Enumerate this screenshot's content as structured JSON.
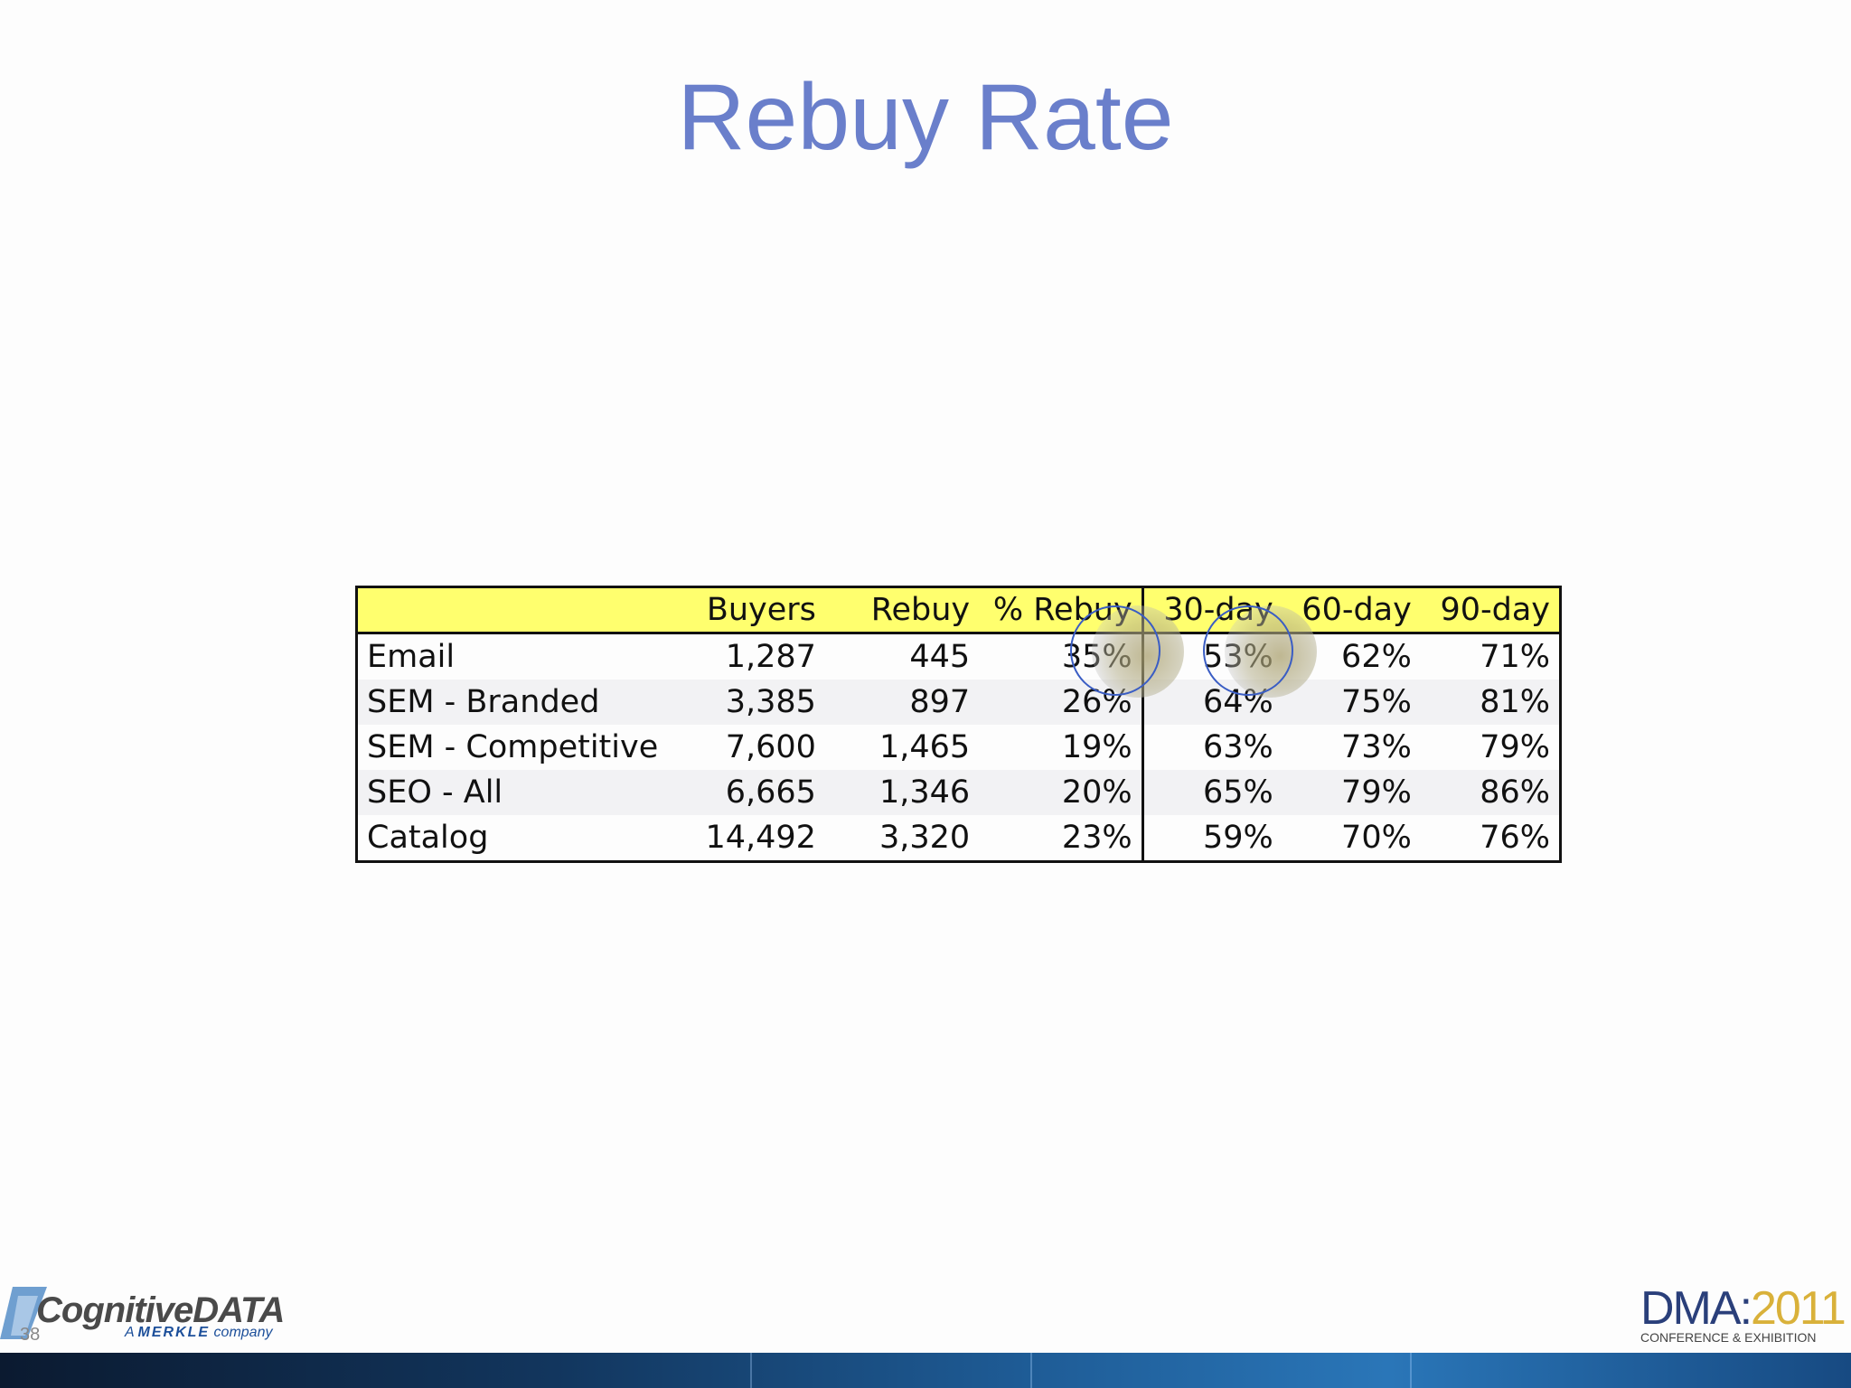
{
  "slide": {
    "title": "Rebuy Rate",
    "page_number": "38"
  },
  "table": {
    "headers": [
      "",
      "Buyers",
      "Rebuy",
      "% Rebuy",
      "30-day",
      "60-day",
      "90-day"
    ],
    "rows": [
      {
        "label": "Email",
        "buyers": "1,287",
        "rebuy": "445",
        "pct_rebuy": "35%",
        "d30": "53%",
        "d60": "62%",
        "d90": "71%"
      },
      {
        "label": "SEM - Branded",
        "buyers": "3,385",
        "rebuy": "897",
        "pct_rebuy": "26%",
        "d30": "64%",
        "d60": "75%",
        "d90": "81%"
      },
      {
        "label": "SEM - Competitive",
        "buyers": "7,600",
        "rebuy": "1,465",
        "pct_rebuy": "19%",
        "d30": "63%",
        "d60": "73%",
        "d90": "79%"
      },
      {
        "label": "SEO - All",
        "buyers": "6,665",
        "rebuy": "1,346",
        "pct_rebuy": "20%",
        "d30": "65%",
        "d60": "79%",
        "d90": "86%"
      },
      {
        "label": "Catalog",
        "buyers": "14,492",
        "rebuy": "3,320",
        "pct_rebuy": "23%",
        "d30": "59%",
        "d60": "70%",
        "d90": "76%"
      }
    ],
    "header_color": "#ffff6e"
  },
  "branding": {
    "left_logo": "CognitiveDATA",
    "left_logo_sub_a": "A",
    "left_logo_sub_brand": "MERKLE",
    "left_logo_sub_c": "company",
    "right_logo_main": "DMA",
    "right_logo_sep": ":",
    "right_logo_year": "2011",
    "right_logo_sub": "CONFERENCE & EXHIBITION"
  },
  "colors": {
    "title": "#6a7fcb",
    "highlight_ring": "#3a5dc4"
  }
}
